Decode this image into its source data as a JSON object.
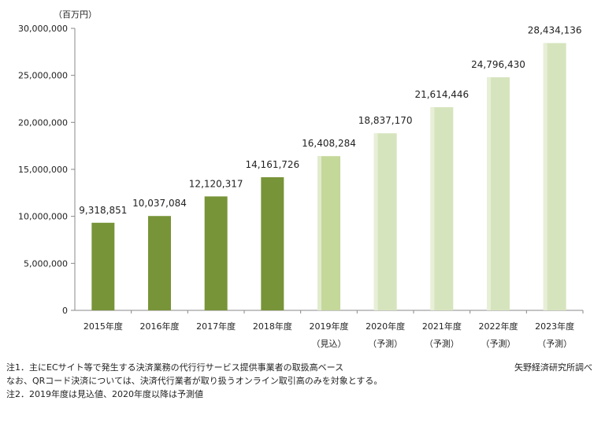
{
  "chart_data": {
    "type": "bar",
    "unit_label": "（百万円）",
    "categories": [
      "2015年度",
      "2016年度",
      "2017年度",
      "2018年度",
      "2019年度",
      "2020年度",
      "2021年度",
      "2022年度",
      "2023年度"
    ],
    "category_sublabels": [
      "",
      "",
      "",
      "",
      "（見込）",
      "（予測）",
      "（予測）",
      "（予測）",
      "（予測）"
    ],
    "values": [
      9318851,
      10037084,
      12120317,
      14161726,
      16408284,
      18837170,
      21614446,
      24796430,
      28434136
    ],
    "value_labels": [
      "9,318,851",
      "10,037,084",
      "12,120,317",
      "14,161,726",
      "16,408,284",
      "18,837,170",
      "21,614,446",
      "24,796,430",
      "28,434,136"
    ],
    "ylim": [
      0,
      30000000
    ],
    "yticks": [
      0,
      5000000,
      10000000,
      15000000,
      20000000,
      25000000,
      30000000
    ],
    "ytick_labels": [
      "0",
      "5,000,000",
      "10,000,000",
      "15,000,000",
      "20,000,000",
      "25,000,000",
      "30,000,000"
    ],
    "bar_colors": [
      "#779438",
      "#779438",
      "#779438",
      "#779438",
      "#c4d89a",
      "#d6e4bd",
      "#d6e4bd",
      "#d6e4bd",
      "#d6e4bd"
    ],
    "grid": false
  },
  "notes": [
    "注1．主にECサイト等で発生する決済業務の代行行サービス提供事業者の取扱高ベース",
    "なお、QRコード決済については、決済代行業者が取り扱うオンライン取引高のみを対象とする。",
    "注2．2019年度は見込値、2020年度以降は予測値"
  ],
  "source": "矢野経済研究所調べ"
}
